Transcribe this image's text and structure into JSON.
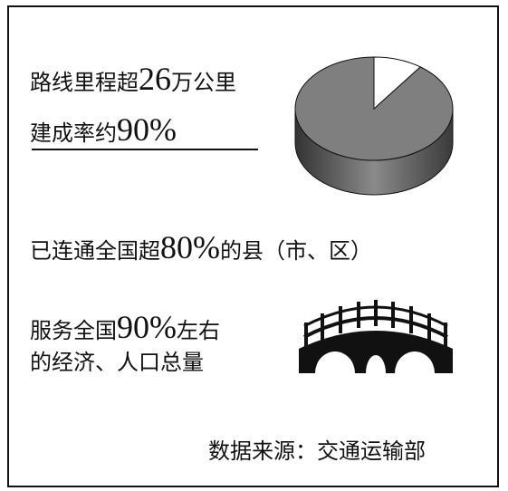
{
  "lines": [
    [
      "路线里程超",
      "26",
      "万公里"
    ],
    [
      "建成率约",
      "90%",
      ""
    ],
    [
      "已连通全国超",
      "80%",
      "的县（市、区）"
    ],
    [
      "服务全国",
      "90%",
      "左右"
    ],
    [
      "的经济、人口总量",
      "",
      ""
    ]
  ],
  "source": "数据来源：交通运输部",
  "chart_data": {
    "type": "pie",
    "values": [
      90,
      10
    ],
    "colors": [
      "#7f7f7f",
      "#ffffff"
    ]
  }
}
